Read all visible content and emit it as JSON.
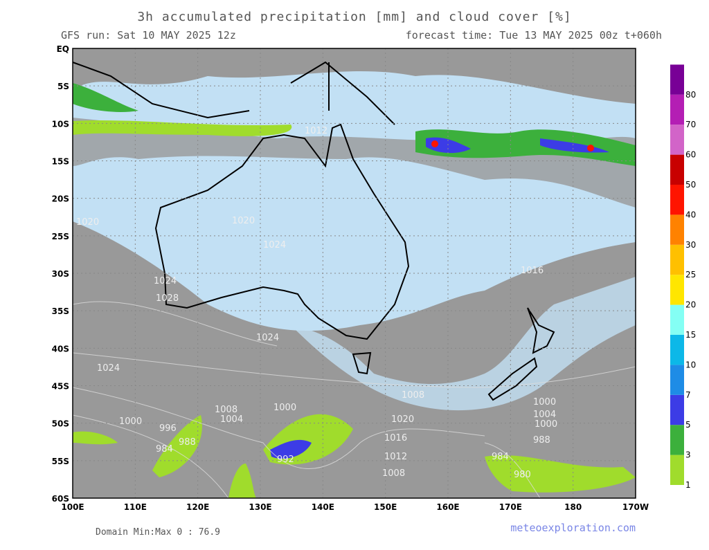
{
  "header": {
    "title": "3h accumulated precipitation [mm] and cloud cover [%]",
    "run": "GFS run: Sat 10 MAY 2025 12z",
    "forecast": "forecast time: Tue 13 MAY 2025 00z  t+060h"
  },
  "map": {
    "lat_labels": [
      "EQ",
      "5S",
      "10S",
      "15S",
      "20S",
      "25S",
      "30S",
      "35S",
      "40S",
      "45S",
      "50S",
      "55S",
      "60S"
    ],
    "lon_labels": [
      "100E",
      "110E",
      "120E",
      "130E",
      "140E",
      "150E",
      "160E",
      "170E",
      "180",
      "170W"
    ],
    "isobar_labels": [
      "1020",
      "1020",
      "1024",
      "1024",
      "1028",
      "1024",
      "1024",
      "1012",
      "1000",
      "996",
      "988",
      "984",
      "992",
      "1000",
      "1004",
      "1008",
      "1016",
      "1012",
      "1008",
      "1020",
      "1000",
      "1004",
      "1000",
      "984",
      "980",
      "988",
      "1008",
      "1016"
    ]
  },
  "colorbar": {
    "levels": [
      1,
      3,
      5,
      7,
      10,
      15,
      20,
      25,
      30,
      40,
      50,
      60,
      70,
      80
    ],
    "colors": [
      "#a0dc2c",
      "#3cb03c",
      "#3c3ce6",
      "#1e8ce6",
      "#0cb8e8",
      "#84fff4",
      "#ffe600",
      "#ffc000",
      "#ff8200",
      "#ff1400",
      "#c80000",
      "#d264c8",
      "#b41eb4",
      "#780096"
    ]
  },
  "footer": {
    "minmax": "Domain Min:Max 0 : 76.9",
    "site": "meteoexploration.com"
  }
}
